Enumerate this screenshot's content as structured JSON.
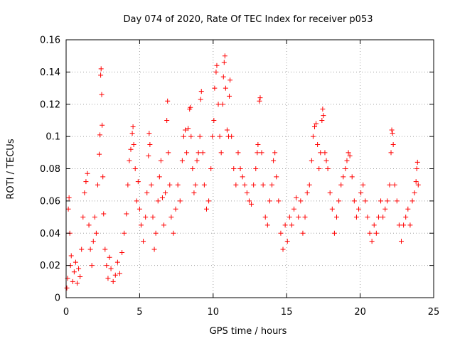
{
  "chart_data": {
    "type": "scatter",
    "title": "Day 074 of 2020, Rate Of TEC Index for receiver p053",
    "xlabel": "GPS time / hours",
    "ylabel": "ROTI / TECUs",
    "xlim": [
      0,
      25
    ],
    "ylim": [
      0,
      0.16
    ],
    "xticks": [
      0,
      5,
      10,
      15,
      20,
      25
    ],
    "xtick_labels": [
      "0",
      "5",
      "10",
      "15",
      "20",
      "25"
    ],
    "yticks": [
      0,
      0.02,
      0.04,
      0.06,
      0.08,
      0.1,
      0.12,
      0.14,
      0.16
    ],
    "ytick_labels": [
      "0",
      "0.02",
      "0.04",
      "0.06",
      "0.08",
      "0.1",
      "0.12",
      "0.14",
      "0.16"
    ],
    "grid": true,
    "marker": "+",
    "marker_color": "#ff0000",
    "series": [
      {
        "name": "ROTI",
        "points": [
          [
            0.05,
            0.006
          ],
          [
            0.1,
            0.012
          ],
          [
            0.15,
            0.055
          ],
          [
            0.2,
            0.062
          ],
          [
            0.25,
            0.04
          ],
          [
            0.3,
            0.02
          ],
          [
            0.35,
            0.026
          ],
          [
            0.45,
            0.01
          ],
          [
            0.55,
            0.016
          ],
          [
            0.65,
            0.022
          ],
          [
            0.75,
            0.009
          ],
          [
            0.85,
            0.018
          ],
          [
            0.95,
            0.013
          ],
          [
            1.05,
            0.03
          ],
          [
            1.15,
            0.05
          ],
          [
            1.25,
            0.065
          ],
          [
            1.35,
            0.072
          ],
          [
            1.45,
            0.077
          ],
          [
            1.55,
            0.045
          ],
          [
            1.65,
            0.03
          ],
          [
            1.75,
            0.02
          ],
          [
            1.85,
            0.035
          ],
          [
            1.95,
            0.05
          ],
          [
            2.05,
            0.04
          ],
          [
            2.15,
            0.07
          ],
          [
            2.25,
            0.089
          ],
          [
            2.3,
            0.101
          ],
          [
            2.35,
            0.138
          ],
          [
            2.38,
            0.142
          ],
          [
            2.42,
            0.126
          ],
          [
            2.45,
            0.107
          ],
          [
            2.5,
            0.075
          ],
          [
            2.55,
            0.052
          ],
          [
            2.65,
            0.03
          ],
          [
            2.75,
            0.02
          ],
          [
            2.85,
            0.012
          ],
          [
            2.95,
            0.025
          ],
          [
            3.05,
            0.018
          ],
          [
            3.2,
            0.01
          ],
          [
            3.35,
            0.014
          ],
          [
            3.5,
            0.022
          ],
          [
            3.65,
            0.015
          ],
          [
            3.8,
            0.028
          ],
          [
            3.95,
            0.04
          ],
          [
            4.1,
            0.052
          ],
          [
            4.2,
            0.07
          ],
          [
            4.3,
            0.085
          ],
          [
            4.4,
            0.092
          ],
          [
            4.5,
            0.102
          ],
          [
            4.55,
            0.106
          ],
          [
            4.6,
            0.095
          ],
          [
            4.7,
            0.08
          ],
          [
            4.8,
            0.06
          ],
          [
            4.9,
            0.072
          ],
          [
            5.0,
            0.055
          ],
          [
            5.1,
            0.045
          ],
          [
            5.25,
            0.035
          ],
          [
            5.4,
            0.05
          ],
          [
            5.5,
            0.065
          ],
          [
            5.6,
            0.088
          ],
          [
            5.65,
            0.102
          ],
          [
            5.7,
            0.095
          ],
          [
            5.8,
            0.07
          ],
          [
            5.9,
            0.05
          ],
          [
            6.0,
            0.03
          ],
          [
            6.1,
            0.04
          ],
          [
            6.25,
            0.06
          ],
          [
            6.35,
            0.075
          ],
          [
            6.45,
            0.085
          ],
          [
            6.55,
            0.062
          ],
          [
            6.65,
            0.045
          ],
          [
            6.75,
            0.065
          ],
          [
            6.85,
            0.11
          ],
          [
            6.9,
            0.122
          ],
          [
            6.95,
            0.09
          ],
          [
            7.05,
            0.07
          ],
          [
            7.15,
            0.05
          ],
          [
            7.3,
            0.04
          ],
          [
            7.45,
            0.055
          ],
          [
            7.6,
            0.07
          ],
          [
            7.75,
            0.06
          ],
          [
            7.9,
            0.085
          ],
          [
            8.0,
            0.1
          ],
          [
            8.1,
            0.104
          ],
          [
            8.2,
            0.09
          ],
          [
            8.3,
            0.105
          ],
          [
            8.4,
            0.117
          ],
          [
            8.45,
            0.118
          ],
          [
            8.5,
            0.1
          ],
          [
            8.6,
            0.08
          ],
          [
            8.7,
            0.065
          ],
          [
            8.8,
            0.07
          ],
          [
            8.9,
            0.085
          ],
          [
            9.0,
            0.09
          ],
          [
            9.1,
            0.1
          ],
          [
            9.15,
            0.123
          ],
          [
            9.2,
            0.128
          ],
          [
            9.3,
            0.09
          ],
          [
            9.4,
            0.07
          ],
          [
            9.55,
            0.055
          ],
          [
            9.7,
            0.06
          ],
          [
            9.85,
            0.08
          ],
          [
            9.95,
            0.1
          ],
          [
            10.05,
            0.11
          ],
          [
            10.1,
            0.13
          ],
          [
            10.2,
            0.14
          ],
          [
            10.25,
            0.144
          ],
          [
            10.35,
            0.12
          ],
          [
            10.45,
            0.1
          ],
          [
            10.55,
            0.09
          ],
          [
            10.65,
            0.12
          ],
          [
            10.7,
            0.137
          ],
          [
            10.75,
            0.146
          ],
          [
            10.8,
            0.15
          ],
          [
            10.85,
            0.13
          ],
          [
            10.95,
            0.104
          ],
          [
            11.05,
            0.1
          ],
          [
            11.1,
            0.125
          ],
          [
            11.15,
            0.135
          ],
          [
            11.25,
            0.1
          ],
          [
            11.4,
            0.08
          ],
          [
            11.55,
            0.07
          ],
          [
            11.7,
            0.09
          ],
          [
            11.85,
            0.08
          ],
          [
            12.0,
            0.075
          ],
          [
            12.15,
            0.07
          ],
          [
            12.3,
            0.065
          ],
          [
            12.45,
            0.06
          ],
          [
            12.6,
            0.058
          ],
          [
            12.75,
            0.07
          ],
          [
            12.9,
            0.08
          ],
          [
            13.0,
            0.09
          ],
          [
            13.05,
            0.095
          ],
          [
            13.15,
            0.122
          ],
          [
            13.2,
            0.124
          ],
          [
            13.3,
            0.09
          ],
          [
            13.4,
            0.07
          ],
          [
            13.55,
            0.05
          ],
          [
            13.7,
            0.045
          ],
          [
            13.85,
            0.06
          ],
          [
            14.0,
            0.07
          ],
          [
            14.1,
            0.085
          ],
          [
            14.2,
            0.09
          ],
          [
            14.3,
            0.075
          ],
          [
            14.45,
            0.06
          ],
          [
            14.6,
            0.04
          ],
          [
            14.75,
            0.03
          ],
          [
            14.9,
            0.045
          ],
          [
            15.05,
            0.035
          ],
          [
            15.2,
            0.05
          ],
          [
            15.35,
            0.045
          ],
          [
            15.5,
            0.055
          ],
          [
            15.65,
            0.062
          ],
          [
            15.8,
            0.05
          ],
          [
            15.95,
            0.06
          ],
          [
            16.1,
            0.04
          ],
          [
            16.25,
            0.05
          ],
          [
            16.4,
            0.065
          ],
          [
            16.55,
            0.07
          ],
          [
            16.7,
            0.085
          ],
          [
            16.8,
            0.1
          ],
          [
            16.9,
            0.106
          ],
          [
            17.0,
            0.108
          ],
          [
            17.1,
            0.095
          ],
          [
            17.2,
            0.08
          ],
          [
            17.3,
            0.09
          ],
          [
            17.4,
            0.11
          ],
          [
            17.45,
            0.117
          ],
          [
            17.5,
            0.113
          ],
          [
            17.6,
            0.09
          ],
          [
            17.7,
            0.085
          ],
          [
            17.8,
            0.08
          ],
          [
            17.95,
            0.065
          ],
          [
            18.1,
            0.055
          ],
          [
            18.25,
            0.04
          ],
          [
            18.4,
            0.05
          ],
          [
            18.55,
            0.06
          ],
          [
            18.7,
            0.07
          ],
          [
            18.85,
            0.075
          ],
          [
            19.0,
            0.08
          ],
          [
            19.1,
            0.085
          ],
          [
            19.2,
            0.09
          ],
          [
            19.3,
            0.088
          ],
          [
            19.45,
            0.075
          ],
          [
            19.6,
            0.06
          ],
          [
            19.75,
            0.05
          ],
          [
            19.9,
            0.055
          ],
          [
            20.05,
            0.065
          ],
          [
            20.2,
            0.07
          ],
          [
            20.35,
            0.06
          ],
          [
            20.5,
            0.05
          ],
          [
            20.65,
            0.04
          ],
          [
            20.8,
            0.035
          ],
          [
            20.95,
            0.045
          ],
          [
            21.1,
            0.04
          ],
          [
            21.25,
            0.05
          ],
          [
            21.4,
            0.06
          ],
          [
            21.55,
            0.05
          ],
          [
            21.7,
            0.055
          ],
          [
            21.85,
            0.06
          ],
          [
            22.0,
            0.07
          ],
          [
            22.1,
            0.09
          ],
          [
            22.15,
            0.104
          ],
          [
            22.2,
            0.102
          ],
          [
            22.25,
            0.095
          ],
          [
            22.35,
            0.07
          ],
          [
            22.5,
            0.06
          ],
          [
            22.65,
            0.045
          ],
          [
            22.8,
            0.035
          ],
          [
            22.95,
            0.045
          ],
          [
            23.1,
            0.05
          ],
          [
            23.25,
            0.055
          ],
          [
            23.4,
            0.045
          ],
          [
            23.55,
            0.06
          ],
          [
            23.7,
            0.065
          ],
          [
            23.8,
            0.072
          ],
          [
            23.85,
            0.08
          ],
          [
            23.9,
            0.084
          ],
          [
            23.95,
            0.07
          ]
        ]
      }
    ]
  }
}
